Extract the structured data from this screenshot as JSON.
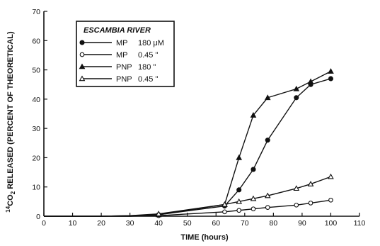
{
  "chart_data": {
    "type": "line",
    "title": "",
    "xlabel": "TIME (hours)",
    "ylabel_super": "14",
    "ylabel_sub": "2",
    "ylabel_pre": "CO",
    "ylabel_post": " RELEASED (PERCENT OF THEORETICAL)",
    "xlim": [
      0,
      110
    ],
    "ylim": [
      0,
      70
    ],
    "xticks": [
      0,
      10,
      20,
      30,
      40,
      50,
      60,
      70,
      80,
      90,
      100,
      110
    ],
    "yticks": [
      0,
      10,
      20,
      30,
      40,
      50,
      60,
      70
    ],
    "grid": false,
    "legend": {
      "title": "ESCAMBIA RIVER",
      "placement": "top-left"
    },
    "series": [
      {
        "name": "MP",
        "conc": "180 μM",
        "marker": "filled-circle",
        "x": [
          0,
          15,
          20,
          30,
          40,
          63,
          68,
          73,
          78,
          88,
          93,
          100
        ],
        "y": [
          0,
          0,
          0,
          0,
          0.5,
          3.5,
          9,
          16,
          26,
          40.5,
          45,
          47
        ]
      },
      {
        "name": "MP",
        "conc": "0.45 \"",
        "marker": "open-circle",
        "x": [
          0,
          15,
          20,
          30,
          40,
          63,
          68,
          73,
          78,
          88,
          93,
          100
        ],
        "y": [
          0,
          0,
          0,
          0,
          0.2,
          1.5,
          2,
          2.5,
          3,
          3.8,
          4.5,
          5.5
        ]
      },
      {
        "name": "PNP",
        "conc": "180 \"",
        "marker": "filled-triangle",
        "x": [
          0,
          15,
          20,
          30,
          40,
          63,
          68,
          73,
          78,
          88,
          93,
          100
        ],
        "y": [
          0,
          0,
          0,
          0.2,
          0.5,
          4,
          20,
          34.5,
          40.5,
          43.5,
          46,
          49.5
        ]
      },
      {
        "name": "PNP",
        "conc": "0.45 \"",
        "marker": "open-triangle",
        "x": [
          0,
          15,
          20,
          30,
          40,
          63,
          68,
          73,
          78,
          88,
          93,
          100
        ],
        "y": [
          0,
          0,
          0,
          0.2,
          0.8,
          4,
          5,
          6,
          7,
          9.5,
          11,
          13.5
        ]
      }
    ]
  }
}
